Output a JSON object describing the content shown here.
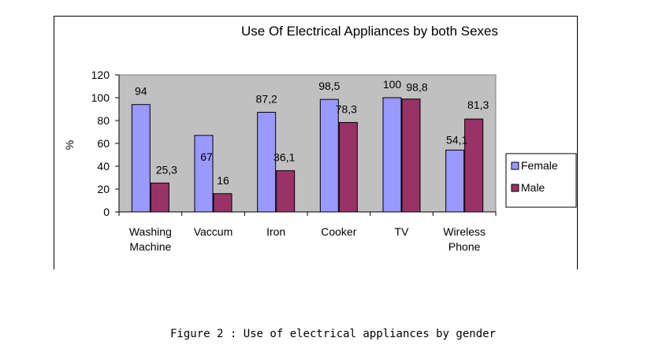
{
  "caption": "Figure 2 : Use of electrical appliances by gender",
  "chart_data": {
    "type": "bar",
    "title": "Use Of Electrical Appliances by both Sexes",
    "ylabel": "%",
    "xlabel": "",
    "ylim": [
      0,
      120
    ],
    "yticks": [
      0,
      20,
      40,
      60,
      80,
      100,
      120
    ],
    "grid": false,
    "legend_position": "right",
    "categories": [
      [
        "Washing",
        "Machine"
      ],
      [
        "Vaccum"
      ],
      [
        "Iron"
      ],
      [
        "Cooker"
      ],
      [
        "TV"
      ],
      [
        "Wireless",
        "Phone"
      ]
    ],
    "series": [
      {
        "name": "Female",
        "color": "#9999ff",
        "values": [
          94,
          67,
          87.2,
          98.5,
          100,
          54.1
        ],
        "labels": [
          "94",
          "67",
          "87,2",
          "98,5",
          "100",
          "54,1"
        ]
      },
      {
        "name": "Male",
        "color": "#993366",
        "values": [
          25.3,
          16,
          36.1,
          78.3,
          98.8,
          81.3
        ],
        "labels": [
          "25,3",
          "16",
          "36,1",
          "78,3",
          "98,8",
          "81,3"
        ]
      }
    ],
    "plot_background": "#c0c0c0"
  }
}
